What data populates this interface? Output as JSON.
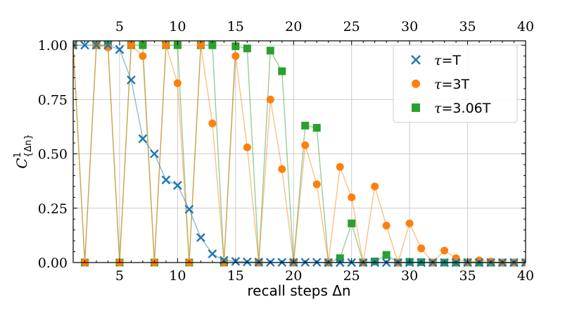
{
  "chart_data": {
    "type": "line",
    "xlabel": "recall steps Δn",
    "ylabel": "C¹{Δn}",
    "ylabel_main": "C",
    "ylabel_sup": "1",
    "ylabel_sub": "{Δn}",
    "xlim": [
      1,
      40
    ],
    "ylim": [
      0,
      1.02
    ],
    "xticks": [
      5,
      10,
      15,
      20,
      25,
      30,
      35,
      40
    ],
    "top_xticks": [
      5,
      10,
      15,
      20,
      25,
      30,
      35,
      40
    ],
    "yticks": [
      0.0,
      0.25,
      0.5,
      0.75,
      1.0
    ],
    "ytick_labels": [
      "0.00",
      "0.25",
      "0.50",
      "0.75",
      "1.00"
    ],
    "grid": true,
    "legend_position": "top-right",
    "series": [
      {
        "name": "τ=T",
        "legend_prefix": "τ",
        "legend_suffix": "=T",
        "marker": "x",
        "color": "#1f77b4",
        "x": [
          1,
          2,
          3,
          4,
          5,
          6,
          7,
          8,
          9,
          10,
          11,
          12,
          13,
          14,
          15,
          16,
          17,
          18,
          19,
          20,
          21,
          22,
          23,
          24,
          25,
          26,
          27,
          28,
          29,
          30,
          31,
          32,
          33,
          34,
          35,
          36,
          37,
          38,
          39,
          40
        ],
        "y": [
          1.0,
          1.0,
          1.0,
          1.0,
          0.98,
          0.84,
          0.57,
          0.5,
          0.38,
          0.355,
          0.245,
          0.115,
          0.04,
          0.01,
          0.005,
          0.003,
          0.002,
          0.001,
          0.001,
          0.001,
          0.001,
          0.001,
          0,
          0,
          0,
          0,
          0,
          0,
          0,
          0,
          0,
          0,
          0,
          0,
          0,
          0,
          0,
          0,
          0,
          0
        ]
      },
      {
        "name": "τ=3T",
        "legend_prefix": "τ",
        "legend_suffix": "=3T",
        "marker": "o",
        "color": "#ff7f0e",
        "x": [
          1,
          2,
          3,
          4,
          5,
          6,
          7,
          8,
          9,
          10,
          11,
          12,
          13,
          14,
          15,
          16,
          17,
          18,
          19,
          20,
          21,
          22,
          23,
          24,
          25,
          26,
          27,
          28,
          29,
          30,
          31,
          32,
          33,
          34,
          35,
          36,
          37,
          38,
          39,
          40
        ],
        "y": [
          1.0,
          0,
          1.0,
          0.99,
          0,
          1.0,
          0.95,
          0,
          1.0,
          0.825,
          0,
          1.0,
          0.64,
          0,
          0.95,
          0.53,
          0,
          0.75,
          0.43,
          0,
          0.54,
          0.36,
          0,
          0.44,
          0.3,
          0,
          0.35,
          0.17,
          0,
          0.18,
          0.065,
          0,
          0.055,
          0.02,
          0,
          0.01,
          0.005,
          0,
          0,
          0
        ]
      },
      {
        "name": "τ=3.06T",
        "legend_prefix": "τ",
        "legend_suffix": "=3.06T",
        "marker": "s",
        "color": "#2ca02c",
        "x": [
          1,
          2,
          3,
          4,
          5,
          6,
          7,
          8,
          9,
          10,
          11,
          12,
          13,
          14,
          15,
          16,
          17,
          18,
          19,
          20,
          21,
          22,
          23,
          24,
          25,
          26,
          27,
          28,
          29,
          30,
          31,
          32,
          33,
          34,
          35,
          36,
          37,
          38,
          39,
          40
        ],
        "y": [
          1.0,
          0,
          1.0,
          1.0,
          0,
          1.0,
          1.0,
          0,
          1.0,
          1.0,
          0,
          1.0,
          1.0,
          0,
          0.995,
          0.985,
          0,
          0.975,
          0.88,
          0,
          0.63,
          0.62,
          0,
          0.02,
          0.18,
          0,
          0.005,
          0.035,
          0,
          0.003,
          0.002,
          0,
          0,
          0,
          0,
          0,
          0,
          0,
          0,
          0
        ]
      }
    ]
  }
}
